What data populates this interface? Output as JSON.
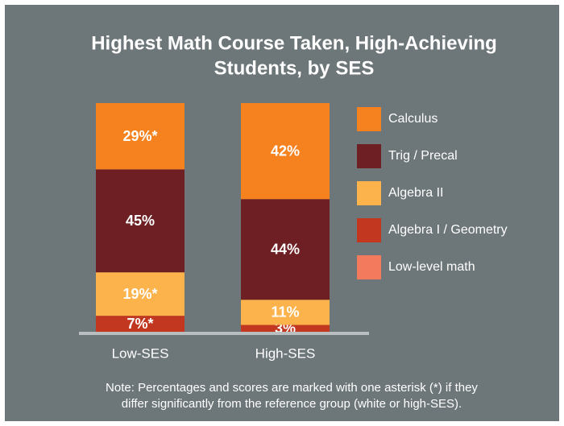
{
  "chart_data": {
    "type": "stacked-bar",
    "title": [
      "Highest Math Course Taken, High-Achieving",
      "Students, by SES"
    ],
    "categories": [
      "Low-SES",
      "High-SES"
    ],
    "series": [
      {
        "name": "Calculus",
        "color": "#f5821f",
        "values": [
          29,
          42
        ],
        "value_labels": [
          "29%*",
          "42%"
        ]
      },
      {
        "name": "Trig / Precal",
        "color": "#6d1f23",
        "values": [
          45,
          44
        ],
        "value_labels": [
          "45%",
          "44%"
        ]
      },
      {
        "name": "Algebra II",
        "color": "#fdb34b",
        "values": [
          19,
          11
        ],
        "value_labels": [
          "19%*",
          "11%"
        ]
      },
      {
        "name": "Algebra I / Geometry",
        "color": "#c1371f",
        "values": [
          7,
          3
        ],
        "value_labels": [
          "7%*",
          "3%"
        ]
      },
      {
        "name": "Low-level math",
        "color": "#f47a5e",
        "values": [
          0,
          0
        ],
        "value_labels": [
          null,
          null
        ]
      }
    ],
    "ylim": [
      0,
      100
    ],
    "legend": "right",
    "note": [
      "Note: Percentages and scores are marked with one asterisk (*) if they",
      "differ significantly from the reference group (white or high-SES)."
    ]
  }
}
